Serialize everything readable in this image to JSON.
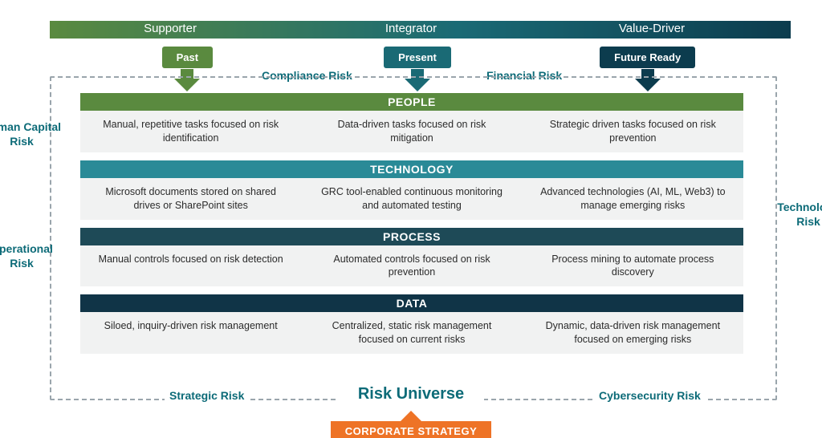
{
  "top_arrow": {
    "gradient": {
      "c1": "#5a8a3f",
      "c2": "#1a6a75",
      "c3": "#0c3c4e"
    },
    "labels": [
      "Supporter",
      "Integrator",
      "Value-Driver"
    ]
  },
  "stages": [
    {
      "label": "Past",
      "color": "#5a8a3f"
    },
    {
      "label": "Present",
      "color": "#1a6a75"
    },
    {
      "label": "Future Ready",
      "color": "#0c3c4e"
    }
  ],
  "top_risks": {
    "left": "Compliance Risk",
    "right": "Financial Risk"
  },
  "bottom_risks": {
    "left": "Strategic Risk",
    "right": "Cybersecurity Risk"
  },
  "side_risks": {
    "left_upper": "Human Capital Risk",
    "left_lower": "Operational Risk",
    "right": "Technology Risk"
  },
  "risk_universe": "Risk Universe",
  "corp_strategy": {
    "label": "CORPORATE STRATEGY",
    "color": "#ee7326"
  },
  "teal": "#0d6b78",
  "body_bg": "#f1f2f2",
  "categories": [
    {
      "title": "PEOPLE",
      "head_color": "#5a8a3f",
      "cells": [
        "Manual, repetitive tasks focused on risk identification",
        "Data-driven tasks focused on risk mitigation",
        "Strategic driven tasks focused on risk prevention"
      ]
    },
    {
      "title": "TECHNOLOGY",
      "head_color": "#2a8a97",
      "cells": [
        "Microsoft documents stored on shared drives or SharePoint sites",
        "GRC tool-enabled continuous monitoring and automated testing",
        "Advanced technologies (AI, ML, Web3) to manage emerging risks"
      ]
    },
    {
      "title": "PROCESS",
      "head_color": "#1e4a57",
      "cells": [
        "Manual controls focused on risk detection",
        "Automated controls focused on risk prevention",
        "Process mining to automate process discovery"
      ]
    },
    {
      "title": "DATA",
      "head_color": "#103447",
      "cells": [
        "Siloed, inquiry-driven risk management",
        "Centralized, static risk management focused on current risks",
        "Dynamic, data-driven risk management focused on emerging risks"
      ]
    }
  ]
}
